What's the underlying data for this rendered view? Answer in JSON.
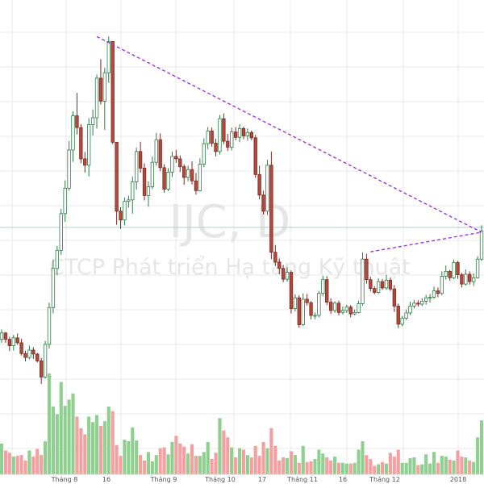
{
  "chart_data": {
    "type": "candlestick",
    "watermark": {
      "symbol": "IJC, D",
      "company": "CTCP Phát triển Hạ tầng Kỹ thuật"
    },
    "x_tick_labels": [
      "Tháng 8",
      "16",
      "Tháng 9",
      "Tháng 10",
      "17",
      "Tháng 11",
      "16",
      "Tháng 12",
      "2018"
    ],
    "colors": {
      "up_body": "#ffffff",
      "up_border": "#2e7d46",
      "down_body": "#b5483c",
      "down_border": "#7a2a21",
      "volume_up": "#8fcf8f",
      "volume_down": "#f4a0a0",
      "trendline": "#9a34e0",
      "price_line": "#a9d2cc",
      "grid": "#e9e9e9"
    },
    "price_line_value": 10.3,
    "y_range": [
      6.9,
      14.7
    ],
    "trendlines": [
      {
        "from": {
          "bar": 24,
          "price": 14.2
        },
        "to": {
          "bar": 121,
          "price": 10.2
        }
      },
      {
        "from": {
          "bar": 93,
          "price": 9.8
        },
        "to": {
          "bar": 121,
          "price": 10.2
        }
      }
    ],
    "bars": [
      [
        8.01,
        8.21,
        7.94,
        8.14,
        40
      ],
      [
        8.14,
        8.16,
        7.94,
        8.01,
        31
      ],
      [
        8.01,
        8.06,
        7.77,
        7.88,
        28
      ],
      [
        7.88,
        8.1,
        7.78,
        8.04,
        23
      ],
      [
        8.04,
        8.13,
        7.9,
        7.94,
        24
      ],
      [
        7.94,
        8.02,
        7.68,
        7.72,
        25
      ],
      [
        7.72,
        7.78,
        7.56,
        7.64,
        18
      ],
      [
        7.64,
        7.88,
        7.6,
        7.79,
        31
      ],
      [
        7.79,
        7.85,
        7.61,
        7.71,
        23
      ],
      [
        7.71,
        7.73,
        7.54,
        7.57,
        33
      ],
      [
        7.57,
        7.63,
        7.1,
        7.24,
        25
      ],
      [
        7.24,
        7.98,
        7.21,
        7.91,
        43
      ],
      [
        7.91,
        8.76,
        7.82,
        8.66,
        131
      ],
      [
        8.66,
        9.64,
        8.54,
        9.46,
        88
      ],
      [
        9.46,
        9.92,
        9.32,
        9.83,
        78
      ],
      [
        9.83,
        10.68,
        9.74,
        10.58,
        120
      ],
      [
        10.58,
        11.26,
        10.41,
        11.1,
        89
      ],
      [
        11.1,
        12.06,
        11.05,
        11.88,
        97
      ],
      [
        11.88,
        12.67,
        11.64,
        12.58,
        105
      ],
      [
        12.58,
        13.05,
        12.2,
        12.34,
        75
      ],
      [
        12.34,
        12.41,
        11.61,
        11.7,
        60
      ],
      [
        11.7,
        11.84,
        11.42,
        11.57,
        52
      ],
      [
        11.57,
        12.53,
        11.34,
        12.4,
        75
      ],
      [
        12.4,
        12.71,
        12.18,
        12.54,
        68
      ],
      [
        12.54,
        13.42,
        12.32,
        13.35,
        77
      ],
      [
        13.35,
        13.74,
        12.81,
        12.88,
        63
      ],
      [
        12.88,
        13.56,
        12.29,
        13.46,
        69
      ],
      [
        13.46,
        14.2,
        13.25,
        14.1,
        88
      ],
      [
        14.1,
        13.86,
        12.0,
        12.04,
        82
      ],
      [
        12.04,
        11.42,
        10.35,
        10.63,
        38
      ],
      [
        10.63,
        10.71,
        10.27,
        10.45,
        24
      ],
      [
        10.45,
        10.91,
        10.34,
        10.83,
        45
      ],
      [
        10.83,
        10.95,
        10.7,
        10.86,
        43
      ],
      [
        10.86,
        11.34,
        10.58,
        11.23,
        61
      ],
      [
        11.23,
        11.93,
        11.07,
        11.85,
        44
      ],
      [
        11.85,
        12.05,
        11.42,
        11.51,
        25
      ],
      [
        11.51,
        11.61,
        10.85,
        10.95,
        18
      ],
      [
        10.95,
        11.24,
        10.72,
        11.13,
        29
      ],
      [
        11.13,
        11.75,
        11.08,
        11.63,
        17
      ],
      [
        11.63,
        12.23,
        11.56,
        12.09,
        25
      ],
      [
        12.09,
        12.22,
        11.45,
        11.52,
        34
      ],
      [
        11.52,
        11.59,
        11.01,
        11.08,
        35
      ],
      [
        11.08,
        11.51,
        11.04,
        11.43,
        26
      ],
      [
        11.43,
        11.85,
        11.33,
        11.75,
        42
      ],
      [
        11.75,
        11.88,
        11.62,
        11.7,
        50
      ],
      [
        11.7,
        11.77,
        11.43,
        11.54,
        40
      ],
      [
        11.54,
        11.59,
        11.17,
        11.32,
        36
      ],
      [
        11.32,
        11.56,
        11.24,
        11.48,
        27
      ],
      [
        11.48,
        11.65,
        11.18,
        11.25,
        39
      ],
      [
        11.25,
        11.41,
        10.97,
        11.05,
        24
      ],
      [
        11.05,
        11.71,
        11.03,
        11.59,
        24
      ],
      [
        11.59,
        12.12,
        11.53,
        12.01,
        29
      ],
      [
        12.01,
        12.35,
        11.9,
        12.27,
        42
      ],
      [
        12.27,
        12.34,
        11.95,
        12.02,
        20
      ],
      [
        12.02,
        12.11,
        11.75,
        11.85,
        28
      ],
      [
        11.85,
        12.6,
        11.79,
        12.52,
        73
      ],
      [
        12.52,
        12.63,
        12.0,
        12.06,
        57
      ],
      [
        12.06,
        12.21,
        11.86,
        11.94,
        48
      ],
      [
        11.94,
        12.34,
        11.87,
        12.25,
        35
      ],
      [
        12.25,
        12.35,
        12.08,
        12.14,
        22
      ],
      [
        12.14,
        12.41,
        12.04,
        12.32,
        34
      ],
      [
        12.32,
        12.36,
        12.1,
        12.17,
        32
      ],
      [
        12.17,
        12.32,
        12.07,
        12.24,
        25
      ],
      [
        12.24,
        12.28,
        12.08,
        12.13,
        22
      ],
      [
        12.13,
        12.19,
        11.31,
        11.38,
        37
      ],
      [
        11.38,
        11.56,
        10.87,
        10.96,
        24
      ],
      [
        10.96,
        11.05,
        10.56,
        10.63,
        42
      ],
      [
        10.63,
        11.68,
        10.55,
        11.57,
        34
      ],
      [
        11.57,
        11.85,
        9.65,
        9.79,
        60
      ],
      [
        9.79,
        9.94,
        9.51,
        9.59,
        37
      ],
      [
        9.59,
        9.66,
        9.34,
        9.46,
        18
      ],
      [
        9.46,
        9.53,
        9.18,
        9.24,
        22
      ],
      [
        9.24,
        9.49,
        9.19,
        9.38,
        21
      ],
      [
        9.38,
        9.42,
        8.54,
        8.64,
        30
      ],
      [
        8.64,
        8.93,
        8.58,
        8.86,
        25
      ],
      [
        8.86,
        8.91,
        8.25,
        8.31,
        15
      ],
      [
        8.31,
        8.95,
        8.28,
        8.83,
        37
      ],
      [
        8.83,
        8.94,
        8.7,
        8.76,
        16
      ],
      [
        8.76,
        8.79,
        8.42,
        8.5,
        17
      ],
      [
        8.5,
        8.56,
        8.42,
        8.5,
        20
      ],
      [
        8.5,
        9.0,
        8.46,
        8.95,
        32
      ],
      [
        8.95,
        9.31,
        8.89,
        9.23,
        27
      ],
      [
        9.23,
        9.3,
        8.71,
        8.77,
        22
      ],
      [
        8.77,
        8.85,
        8.53,
        8.6,
        18
      ],
      [
        8.6,
        8.79,
        8.55,
        8.75,
        23
      ],
      [
        8.75,
        8.8,
        8.5,
        8.56,
        15
      ],
      [
        8.56,
        8.68,
        8.52,
        8.6,
        15
      ],
      [
        8.6,
        8.72,
        8.55,
        8.67,
        14
      ],
      [
        8.67,
        8.71,
        8.46,
        8.53,
        14
      ],
      [
        8.53,
        8.62,
        8.5,
        8.56,
        15
      ],
      [
        8.56,
        8.8,
        8.54,
        8.74,
        32
      ],
      [
        8.74,
        9.79,
        8.7,
        9.65,
        43
      ],
      [
        9.65,
        9.76,
        9.15,
        9.23,
        25
      ],
      [
        9.23,
        9.29,
        8.99,
        9.05,
        20
      ],
      [
        9.05,
        9.1,
        8.93,
        8.97,
        11
      ],
      [
        8.97,
        9.26,
        8.94,
        9.19,
        13
      ],
      [
        9.19,
        9.24,
        9.02,
        9.06,
        16
      ],
      [
        9.06,
        9.33,
        9.02,
        9.22,
        14
      ],
      [
        9.22,
        9.28,
        9.0,
        9.04,
        28
      ],
      [
        9.04,
        9.12,
        8.57,
        8.69,
        23
      ],
      [
        8.69,
        8.74,
        8.24,
        8.32,
        32
      ],
      [
        8.32,
        8.49,
        8.28,
        8.44,
        15
      ],
      [
        8.44,
        8.62,
        8.41,
        8.55,
        15
      ],
      [
        8.55,
        8.78,
        8.51,
        8.69,
        21
      ],
      [
        8.69,
        8.82,
        8.64,
        8.75,
        22
      ],
      [
        8.75,
        8.81,
        8.68,
        8.73,
        12
      ],
      [
        8.73,
        8.85,
        8.69,
        8.79,
        13
      ],
      [
        8.79,
        8.92,
        8.72,
        8.86,
        26
      ],
      [
        8.86,
        8.94,
        8.76,
        8.87,
        14
      ],
      [
        8.87,
        9.09,
        8.84,
        9.0,
        29
      ],
      [
        9.0,
        9.07,
        8.87,
        8.95,
        15
      ],
      [
        8.95,
        9.4,
        8.91,
        9.3,
        24
      ],
      [
        9.3,
        9.52,
        9.23,
        9.4,
        23
      ],
      [
        9.4,
        9.43,
        9.21,
        9.27,
        19
      ],
      [
        9.27,
        9.64,
        9.24,
        9.58,
        18
      ],
      [
        9.58,
        9.61,
        9.25,
        9.33,
        31
      ],
      [
        9.33,
        9.37,
        9.07,
        9.14,
        23
      ],
      [
        9.14,
        9.44,
        9.11,
        9.34,
        22
      ],
      [
        9.34,
        9.4,
        9.13,
        9.19,
        18
      ],
      [
        9.19,
        9.36,
        9.1,
        9.27,
        16
      ],
      [
        9.27,
        9.71,
        9.25,
        9.65,
        48
      ],
      [
        9.65,
        10.34,
        9.61,
        10.23,
        70
      ]
    ]
  }
}
